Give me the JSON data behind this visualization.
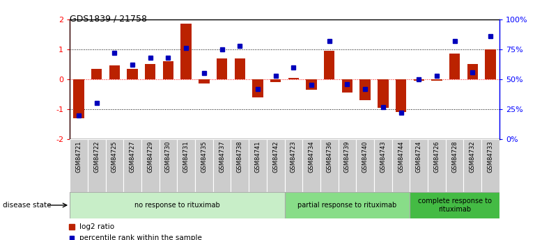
{
  "title": "GDS1839 / 21758",
  "samples": [
    "GSM84721",
    "GSM84722",
    "GSM84725",
    "GSM84727",
    "GSM84729",
    "GSM84730",
    "GSM84731",
    "GSM84735",
    "GSM84737",
    "GSM84738",
    "GSM84741",
    "GSM84742",
    "GSM84723",
    "GSM84734",
    "GSM84736",
    "GSM84739",
    "GSM84740",
    "GSM84743",
    "GSM84744",
    "GSM84724",
    "GSM84726",
    "GSM84728",
    "GSM84732",
    "GSM84733"
  ],
  "log2_ratio": [
    -1.3,
    0.35,
    0.45,
    0.35,
    0.5,
    0.6,
    1.85,
    -0.15,
    0.7,
    0.7,
    -0.6,
    -0.1,
    0.05,
    -0.35,
    0.95,
    -0.45,
    -0.7,
    -0.95,
    -1.1,
    -0.05,
    -0.05,
    0.85,
    0.5,
    1.0
  ],
  "percentile_rank": [
    20,
    30,
    72,
    62,
    68,
    68,
    76,
    55,
    75,
    78,
    42,
    53,
    60,
    45,
    82,
    46,
    42,
    27,
    22,
    50,
    53,
    82,
    56,
    86
  ],
  "groups": [
    {
      "label": "no response to rituximab",
      "start": 0,
      "end": 12,
      "color": "#c8eec8"
    },
    {
      "label": "partial response to rituximab",
      "start": 12,
      "end": 19,
      "color": "#88dd88"
    },
    {
      "label": "complete response to\nrituximab",
      "start": 19,
      "end": 24,
      "color": "#44bb44"
    }
  ],
  "bar_color": "#bb2200",
  "dot_color": "#0000bb",
  "ylim": [
    -2,
    2
  ],
  "yticks_left": [
    -2,
    -1,
    0,
    1,
    2
  ],
  "hlines_dotted": [
    -1,
    1
  ],
  "hline_red": 0,
  "legend_log2": "log2 ratio",
  "legend_pct": "percentile rank within the sample",
  "disease_state_label": "disease state"
}
